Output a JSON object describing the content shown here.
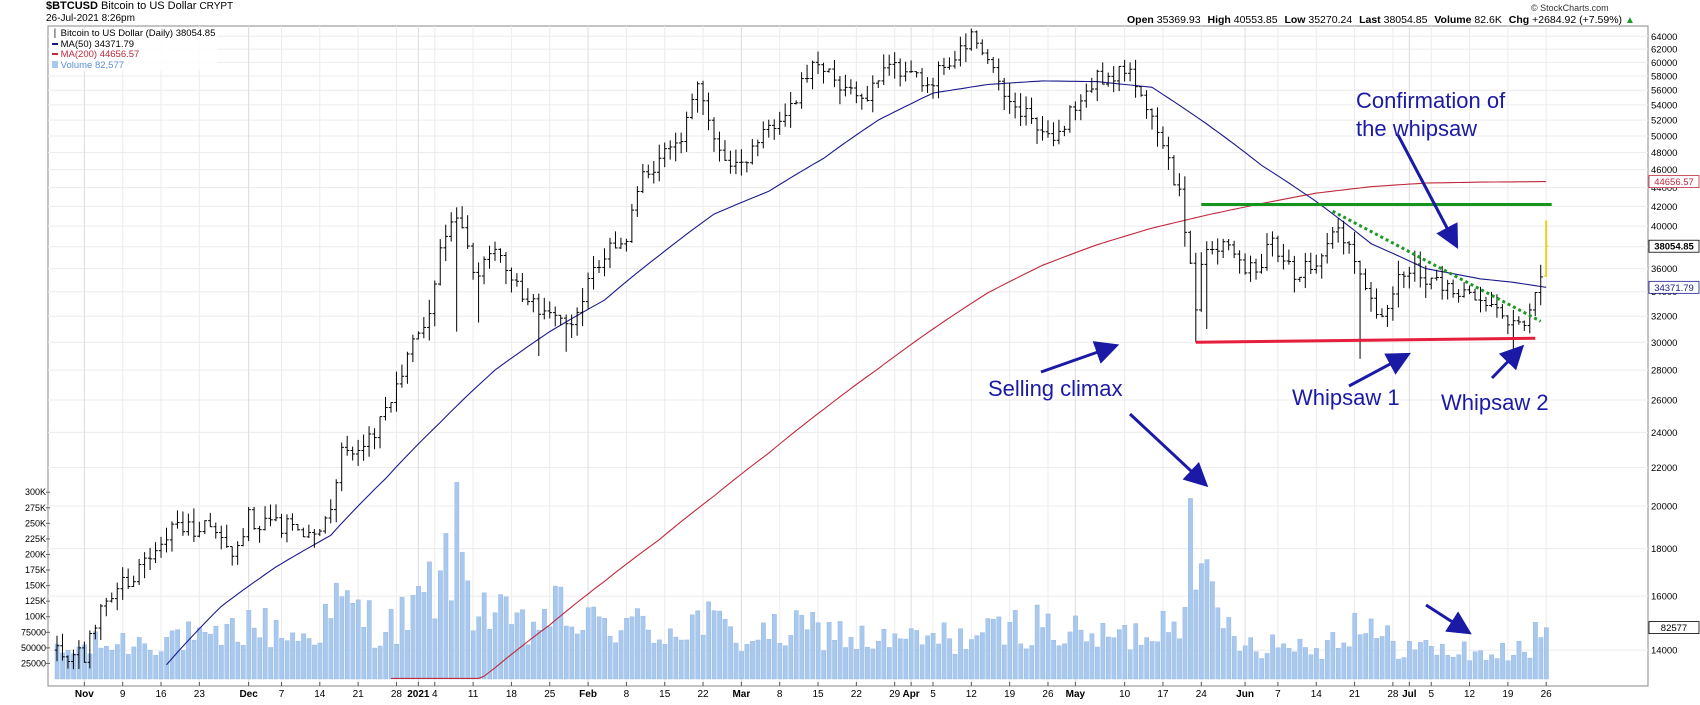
{
  "header": {
    "symbol": "$BTCUSD",
    "name": "Bitcoin to US Dollar",
    "exchange": "CRYPT",
    "datetime": "26-Jul-2021 8:26pm",
    "brand": "© StockCharts.com",
    "open_label": "Open",
    "open": "35369.93",
    "high_label": "High",
    "high": "40553.85",
    "low_label": "Low",
    "low": "35270.24",
    "last_label": "Last",
    "last": "38054.85",
    "volume_label": "Volume",
    "volume": "82.6K",
    "chg_label": "Chg",
    "chg": "+2684.92 (+7.59%)",
    "chg_icon": "up-arrow-icon"
  },
  "legend": [
    {
      "text": "Bitcoin to US Dollar (Daily) 38054.85",
      "color": "#000000",
      "icon": "bar-icon"
    },
    {
      "text": "MA(50) 34371.79",
      "color": "#1a1a8c",
      "icon": "line-icon"
    },
    {
      "text": "MA(200) 44656.57",
      "color": "#c0283c",
      "icon": "line-icon"
    },
    {
      "text": "Volume 82,577",
      "color": "#5b8ed6",
      "icon": "volume-icon"
    }
  ],
  "annotations": [
    {
      "text": "Confirmation of",
      "color": "#1a1aa6"
    },
    {
      "text": "the whipsaw",
      "color": "#1a1aa6"
    },
    {
      "text": "Selling climax",
      "color": "#1a1aa6"
    },
    {
      "text": "Whipsaw 1",
      "color": "#1a1aa6"
    },
    {
      "text": "Whipsaw 2",
      "color": "#1a1aa6"
    }
  ],
  "price_axis_labels": [
    "64000",
    "62000",
    "60000",
    "58000",
    "56000",
    "54000",
    "52000",
    "50000",
    "48000",
    "46000",
    "44000",
    "42000",
    "40000",
    "38000",
    "36000",
    "34000",
    "32000",
    "30000",
    "28000",
    "26000",
    "24000",
    "22000",
    "20000",
    "18000",
    "16000",
    "14000"
  ],
  "price_ticks": [
    64000,
    62000,
    60000,
    58000,
    56000,
    54000,
    52000,
    50000,
    48000,
    46000,
    44000,
    42000,
    40000,
    38000,
    36000,
    34000,
    32000,
    30000,
    28000,
    26000,
    24000,
    22000,
    20000,
    18000,
    16000,
    14000
  ],
  "price_tags": [
    {
      "label": "44656.57",
      "value": 44656.57,
      "color": "#c0283c"
    },
    {
      "label": "38054.85",
      "value": 38054.85,
      "color": "#000000"
    },
    {
      "label": "34371.79",
      "value": 34371.79,
      "color": "#1a1a8c"
    },
    {
      "label": "82577",
      "volume": 82577,
      "color": "#000000"
    }
  ],
  "volume_axis_labels": [
    "300K",
    "275K",
    "250K",
    "225K",
    "200K",
    "175K",
    "150K",
    "125K",
    "100K",
    "75000",
    "50000",
    "25000"
  ],
  "volume_ticks": [
    300000,
    275000,
    250000,
    225000,
    200000,
    175000,
    150000,
    125000,
    100000,
    75000,
    50000,
    25000
  ],
  "x_axis_labels": [
    {
      "text": "Nov",
      "day": 5,
      "bold": true
    },
    {
      "text": "9",
      "day": 12
    },
    {
      "text": "16",
      "day": 19
    },
    {
      "text": "23",
      "day": 26
    },
    {
      "text": "Dec",
      "day": 35,
      "bold": true
    },
    {
      "text": "7",
      "day": 41
    },
    {
      "text": "14",
      "day": 48
    },
    {
      "text": "21",
      "day": 55
    },
    {
      "text": "28",
      "day": 62
    },
    {
      "text": "2021",
      "day": 66,
      "bold": true
    },
    {
      "text": "4",
      "day": 69
    },
    {
      "text": "11",
      "day": 76
    },
    {
      "text": "18",
      "day": 83
    },
    {
      "text": "25",
      "day": 90
    },
    {
      "text": "Feb",
      "day": 97,
      "bold": true
    },
    {
      "text": "8",
      "day": 104
    },
    {
      "text": "15",
      "day": 111
    },
    {
      "text": "22",
      "day": 118
    },
    {
      "text": "Mar",
      "day": 125,
      "bold": true
    },
    {
      "text": "8",
      "day": 132
    },
    {
      "text": "15",
      "day": 139
    },
    {
      "text": "22",
      "day": 146
    },
    {
      "text": "29",
      "day": 153
    },
    {
      "text": "Apr",
      "day": 156,
      "bold": true
    },
    {
      "text": "5",
      "day": 160
    },
    {
      "text": "12",
      "day": 167
    },
    {
      "text": "19",
      "day": 174
    },
    {
      "text": "26",
      "day": 181
    },
    {
      "text": "May",
      "day": 186,
      "bold": true
    },
    {
      "text": "10",
      "day": 195
    },
    {
      "text": "17",
      "day": 202
    },
    {
      "text": "24",
      "day": 209
    },
    {
      "text": "Jun",
      "day": 217,
      "bold": true
    },
    {
      "text": "7",
      "day": 223
    },
    {
      "text": "14",
      "day": 230
    },
    {
      "text": "21",
      "day": 237
    },
    {
      "text": "28",
      "day": 244
    },
    {
      "text": "Jul",
      "day": 247,
      "bold": true
    },
    {
      "text": "5",
      "day": 251
    },
    {
      "text": "12",
      "day": 258
    },
    {
      "text": "19",
      "day": 265
    },
    {
      "text": "26",
      "day": 272
    }
  ],
  "chart_data": {
    "type": "bar",
    "subtype": "ohlc-price-bars-with-moving-averages-and-volume",
    "title": "$BTCUSD Bitcoin to US Dollar CRYPT",
    "x_unit": "trading days since 2020-11-01 (day 0 = Nov 1 2020, day 272 = Jul 26 2021)",
    "log_scale": true,
    "ylim": [
      13000,
      65000
    ],
    "volume_ylim": [
      0,
      310000
    ],
    "grid": true,
    "price_keypoints": [
      [
        0,
        14000
      ],
      [
        5,
        13800
      ],
      [
        8,
        15400
      ],
      [
        11,
        16300
      ],
      [
        14,
        16600
      ],
      [
        18,
        18200
      ],
      [
        21,
        19000
      ],
      [
        25,
        18900
      ],
      [
        28,
        19300
      ],
      [
        32,
        17600
      ],
      [
        35,
        19400
      ],
      [
        40,
        19100
      ],
      [
        46,
        18800
      ],
      [
        50,
        19600
      ],
      [
        52,
        22700
      ],
      [
        55,
        23400
      ],
      [
        58,
        23800
      ],
      [
        61,
        26200
      ],
      [
        64,
        29000
      ],
      [
        68,
        32200
      ],
      [
        70,
        38000
      ],
      [
        73,
        40800
      ],
      [
        76,
        35500
      ],
      [
        80,
        37500
      ],
      [
        84,
        34500
      ],
      [
        87,
        33000
      ],
      [
        91,
        32000
      ],
      [
        94,
        31900
      ],
      [
        98,
        35400
      ],
      [
        101,
        37600
      ],
      [
        104,
        39000
      ],
      [
        107,
        44800
      ],
      [
        111,
        47500
      ],
      [
        114,
        49000
      ],
      [
        117,
        55800
      ],
      [
        120,
        49500
      ],
      [
        123,
        45800
      ],
      [
        127,
        48500
      ],
      [
        131,
        51000
      ],
      [
        135,
        55500
      ],
      [
        139,
        59800
      ],
      [
        143,
        57000
      ],
      [
        147,
        54000
      ],
      [
        151,
        58700
      ],
      [
        155,
        58800
      ],
      [
        159,
        57200
      ],
      [
        163,
        59600
      ],
      [
        167,
        63500
      ],
      [
        169,
        62500
      ],
      [
        173,
        55500
      ],
      [
        176,
        53500
      ],
      [
        179,
        50500
      ],
      [
        183,
        49500
      ],
      [
        186,
        54500
      ],
      [
        189,
        57400
      ],
      [
        192,
        57500
      ],
      [
        195,
        58800
      ],
      [
        198,
        56500
      ],
      [
        201,
        49500
      ],
      [
        205,
        43500
      ],
      [
        207,
        37000
      ],
      [
        208,
        33000
      ],
      [
        210,
        38500
      ],
      [
        214,
        37400
      ],
      [
        218,
        35800
      ],
      [
        222,
        38000
      ],
      [
        226,
        35600
      ],
      [
        230,
        37000
      ],
      [
        233,
        40000
      ],
      [
        236,
        38500
      ],
      [
        240,
        33300
      ],
      [
        242,
        31700
      ],
      [
        244,
        34500
      ],
      [
        248,
        35800
      ],
      [
        252,
        34500
      ],
      [
        256,
        33700
      ],
      [
        260,
        32900
      ],
      [
        264,
        31800
      ],
      [
        267,
        31300
      ],
      [
        269,
        32300
      ],
      [
        271,
        35400
      ],
      [
        272,
        38054
      ]
    ],
    "volume_keypoints": [
      [
        0,
        40000
      ],
      [
        8,
        55000
      ],
      [
        15,
        60000
      ],
      [
        22,
        70000
      ],
      [
        28,
        55000
      ],
      [
        35,
        90000
      ],
      [
        45,
        65000
      ],
      [
        52,
        120000
      ],
      [
        60,
        80000
      ],
      [
        65,
        105000
      ],
      [
        70,
        160000
      ],
      [
        73,
        220000
      ],
      [
        76,
        130000
      ],
      [
        80,
        100000
      ],
      [
        86,
        75000
      ],
      [
        90,
        110000
      ],
      [
        97,
        85000
      ],
      [
        103,
        90000
      ],
      [
        110,
        75000
      ],
      [
        118,
        95000
      ],
      [
        125,
        65000
      ],
      [
        133,
        75000
      ],
      [
        140,
        80000
      ],
      [
        148,
        60000
      ],
      [
        155,
        60000
      ],
      [
        162,
        65000
      ],
      [
        170,
        70000
      ],
      [
        178,
        90000
      ],
      [
        186,
        70000
      ],
      [
        194,
        65000
      ],
      [
        200,
        80000
      ],
      [
        205,
        110000
      ],
      [
        207,
        290000
      ],
      [
        209,
        150000
      ],
      [
        213,
        90000
      ],
      [
        218,
        60000
      ],
      [
        225,
        55000
      ],
      [
        232,
        55000
      ],
      [
        237,
        95000
      ],
      [
        241,
        65000
      ],
      [
        248,
        50000
      ],
      [
        255,
        45000
      ],
      [
        262,
        40000
      ],
      [
        268,
        45000
      ],
      [
        272,
        82577
      ]
    ],
    "ma50_keypoints": [
      [
        20,
        13500
      ],
      [
        30,
        15600
      ],
      [
        40,
        17200
      ],
      [
        50,
        18600
      ],
      [
        60,
        21400
      ],
      [
        70,
        24600
      ],
      [
        80,
        28000
      ],
      [
        90,
        30800
      ],
      [
        100,
        33300
      ],
      [
        110,
        37200
      ],
      [
        120,
        41200
      ],
      [
        130,
        43600
      ],
      [
        140,
        47300
      ],
      [
        150,
        52000
      ],
      [
        160,
        55600
      ],
      [
        170,
        56800
      ],
      [
        180,
        57300
      ],
      [
        190,
        57200
      ],
      [
        200,
        56400
      ],
      [
        210,
        51500
      ],
      [
        220,
        46500
      ],
      [
        230,
        42500
      ],
      [
        240,
        38300
      ],
      [
        250,
        36000
      ],
      [
        260,
        35100
      ],
      [
        266,
        34800
      ],
      [
        272,
        34371.79
      ]
    ],
    "ma200_keypoints": [
      [
        61,
        10200
      ],
      [
        70,
        12000
      ],
      [
        80,
        13400
      ],
      [
        90,
        14900
      ],
      [
        100,
        16600
      ],
      [
        110,
        18400
      ],
      [
        120,
        20500
      ],
      [
        130,
        22800
      ],
      [
        140,
        25400
      ],
      [
        150,
        28100
      ],
      [
        160,
        31000
      ],
      [
        170,
        33900
      ],
      [
        180,
        36300
      ],
      [
        190,
        38200
      ],
      [
        200,
        39800
      ],
      [
        210,
        41100
      ],
      [
        220,
        42300
      ],
      [
        230,
        43400
      ],
      [
        240,
        44100
      ],
      [
        250,
        44500
      ],
      [
        260,
        44600
      ],
      [
        272,
        44656.57
      ]
    ],
    "outlier_lows": [
      {
        "day": 73,
        "low": 30800
      },
      {
        "day": 77,
        "low": 31500
      },
      {
        "day": 88,
        "low": 29000
      },
      {
        "day": 93,
        "low": 29300
      },
      {
        "day": 208,
        "low": 30000
      },
      {
        "day": 210,
        "low": 31000
      },
      {
        "day": 238,
        "low": 28800
      },
      {
        "day": 266,
        "low": 29300
      }
    ],
    "overlays": {
      "resistance_line": {
        "color": "#14961e",
        "day_start": 209,
        "day_end": 273,
        "value": 42200
      },
      "support_line": {
        "color": "#e61e3c",
        "day_start": 208,
        "day_end": 270,
        "value_start": 30000,
        "value_end": 30300
      },
      "dotted_trendline": {
        "color": "#1e9628",
        "day_start": 233,
        "value_start": 41500,
        "day_end": 271,
        "value_end": 31600
      }
    },
    "last_bar_color": "#e6d21e",
    "ma_colors": {
      "ma50": "#1a1a8c",
      "ma200": "#c0283c"
    },
    "volume_color": "#a9c8ee",
    "price_bar_color": "#000000"
  }
}
